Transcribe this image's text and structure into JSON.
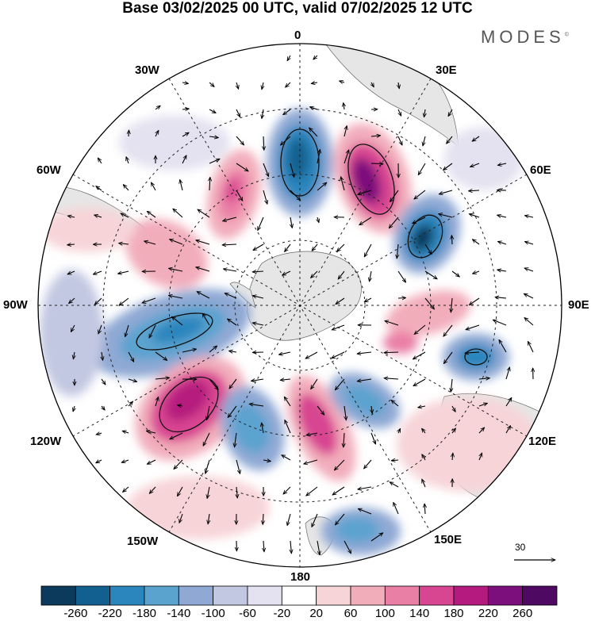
{
  "title": "Base 03/02/2025 00 UTC, valid 07/02/2025 12 UTC",
  "brand": "MODES",
  "brand_mark": "©",
  "map": {
    "projection": "south-polar-stereographic",
    "longitude_labels": {
      "top": "0",
      "top_right": "30E",
      "upper_right": "60E",
      "right": "90E",
      "lower_right": "120E",
      "bottom_right": "150E",
      "bottom": "180",
      "bottom_left": "150W",
      "lower_left": "120W",
      "left": "90W",
      "upper_left": "60W",
      "top_left": "30W"
    },
    "wind_reference_value": "30",
    "land_color": "#e6e6e6",
    "anomaly_centers": [
      {
        "name": "center-negative-0",
        "lon": 0,
        "sign": "negative",
        "strength": "strong"
      },
      {
        "name": "center-positive-25e",
        "lon": 25,
        "sign": "positive",
        "strength": "strong"
      },
      {
        "name": "center-negative-55e",
        "lon": 55,
        "sign": "negative",
        "strength": "strong"
      },
      {
        "name": "center-positive-30w",
        "lon": -30,
        "sign": "positive",
        "strength": "medium"
      },
      {
        "name": "center-negative-95w",
        "lon": -95,
        "sign": "negative",
        "strength": "strong"
      },
      {
        "name": "center-positive-125w",
        "lon": -125,
        "sign": "positive",
        "strength": "strong"
      },
      {
        "name": "center-negative-150w",
        "lon": -150,
        "sign": "negative",
        "strength": "medium"
      },
      {
        "name": "center-positive-165e",
        "lon": 165,
        "sign": "positive",
        "strength": "strong"
      },
      {
        "name": "center-negative-145e",
        "lon": 145,
        "sign": "negative",
        "strength": "medium"
      },
      {
        "name": "center-negative-110e",
        "lon": 110,
        "sign": "negative",
        "strength": "medium"
      },
      {
        "name": "center-positive-95e",
        "lon": 95,
        "sign": "positive",
        "strength": "medium"
      },
      {
        "name": "center-negative-175e",
        "lon": 175,
        "sign": "negative",
        "strength": "medium"
      }
    ]
  },
  "colorbar": {
    "labels": [
      "-260",
      "-220",
      "-180",
      "-140",
      "-100",
      "-60",
      "-20",
      "20",
      "60",
      "100",
      "140",
      "180",
      "220",
      "260"
    ],
    "colors": [
      "#0c3a5c",
      "#12608f",
      "#2b86be",
      "#5ba3cf",
      "#8fa9d4",
      "#c3c8e2",
      "#e4e2f0",
      "#ffffff",
      "#f7d4d8",
      "#f2adbb",
      "#ea7fa6",
      "#d84591",
      "#b51a7e",
      "#7d0f7c",
      "#4e0a63"
    ]
  }
}
